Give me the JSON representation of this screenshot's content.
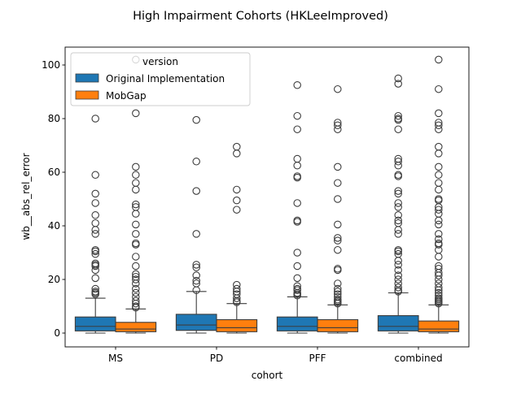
{
  "chart_data": {
    "type": "boxplot",
    "title": "High Impairment Cohorts (HKLeeImproved)",
    "xlabel": "cohort",
    "ylabel": "wb__abs_rel_error",
    "categories": [
      "MS",
      "PD",
      "PFF",
      "combined"
    ],
    "ylim": [
      -5,
      106
    ],
    "yticks": [
      0,
      20,
      40,
      60,
      80,
      100
    ],
    "grid": false,
    "legend": {
      "title": "version",
      "placement": "top-left",
      "entries": [
        "Original Implementation",
        "MobGap"
      ]
    },
    "series": [
      {
        "name": "Original Implementation",
        "color": "#1f77b4",
        "boxes": [
          {
            "whisker_low": 0,
            "q1": 0.8,
            "median": 2.5,
            "q3": 6,
            "whisker_high": 13,
            "outliers": [
              14.5,
              15,
              15.5,
              16.5,
              20.5,
              23.5,
              25,
              25.5,
              26,
              29.5,
              30.5,
              31,
              37,
              38.5,
              41,
              44,
              48.5,
              52,
              59,
              80
            ]
          },
          {
            "whisker_low": 0,
            "q1": 1,
            "median": 3,
            "q3": 7,
            "whisker_high": 15.5,
            "outliers": [
              16,
              18.5,
              19.5,
              21.5,
              24.5,
              25.5,
              37,
              53,
              64,
              79.5
            ]
          },
          {
            "whisker_low": 0,
            "q1": 0.8,
            "median": 2.5,
            "q3": 6,
            "whisker_high": 13.5,
            "outliers": [
              14,
              14.5,
              15,
              16,
              16.5,
              17.5,
              20.5,
              25,
              30,
              41.5,
              42,
              48.5,
              58,
              58.5,
              62.5,
              65,
              76,
              81,
              92.5
            ]
          },
          {
            "whisker_low": 0,
            "q1": 0.8,
            "median": 2.5,
            "q3": 6.5,
            "whisker_high": 15,
            "outliers": [
              15.5,
              16,
              17,
              18.5,
              20,
              21.5,
              23.5,
              25.5,
              27,
              29.5,
              30.5,
              31,
              37,
              38.5,
              41,
              42,
              44,
              47,
              48.5,
              52,
              53,
              58.5,
              59,
              62.5,
              64,
              65,
              76,
              79.5,
              80,
              81,
              93,
              95
            ]
          }
        ]
      },
      {
        "name": "MobGap",
        "color": "#ff7f0e",
        "boxes": [
          {
            "whisker_low": 0,
            "q1": 0.5,
            "median": 1.5,
            "q3": 4,
            "whisker_high": 9,
            "outliers": [
              9.5,
              10,
              11,
              12,
              13.5,
              15,
              16.5,
              18.5,
              20,
              21,
              22,
              25,
              28.5,
              33,
              33.5,
              37,
              40.5,
              44.5,
              47,
              48,
              53.5,
              56,
              59,
              62,
              82,
              102
            ]
          },
          {
            "whisker_low": 0,
            "q1": 0.5,
            "median": 2,
            "q3": 5,
            "whisker_high": 11,
            "outliers": [
              11.5,
              12,
              13,
              14.5,
              15.5,
              16.5,
              18,
              46,
              49.5,
              53.5,
              67,
              69.5
            ]
          },
          {
            "whisker_low": 0,
            "q1": 0.5,
            "median": 2,
            "q3": 5,
            "whisker_high": 10.5,
            "outliers": [
              11,
              11.5,
              12,
              12.5,
              13.5,
              14.5,
              15.5,
              16.5,
              18.5,
              23.5,
              24,
              31,
              34.5,
              35.5,
              40.5,
              50,
              56,
              62,
              76,
              77.5,
              78.5,
              91
            ]
          },
          {
            "whisker_low": 0,
            "q1": 0.5,
            "median": 1.5,
            "q3": 4.5,
            "whisker_high": 10.5,
            "outliers": [
              11,
              11.5,
              12,
              12.5,
              13,
              14,
              15,
              16,
              17,
              18.5,
              20,
              21.5,
              22.5,
              24,
              25,
              28.5,
              31,
              33,
              33.5,
              35,
              37,
              40.5,
              42,
              44.5,
              46,
              47,
              49.5,
              50,
              53.5,
              56,
              59,
              62,
              67,
              69.5,
              76,
              77.5,
              78.5,
              82,
              91,
              102
            ]
          }
        ]
      }
    ]
  }
}
